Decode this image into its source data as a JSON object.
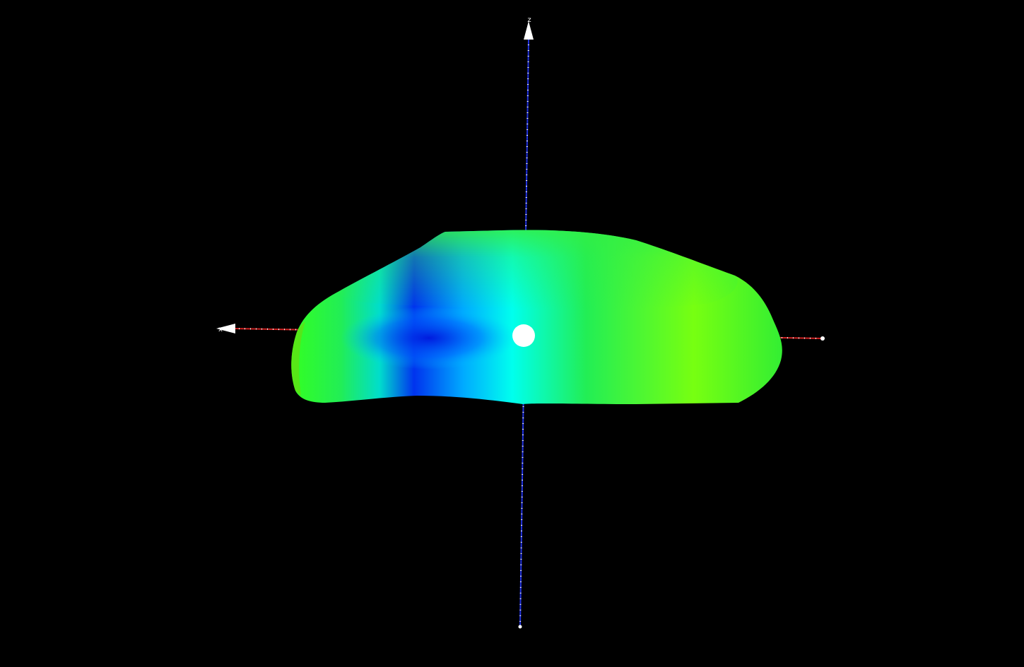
{
  "viewer": {
    "background_color": "#000000",
    "axes": {
      "x": {
        "label": "x",
        "color": "#cc2222",
        "tick_color": "#ffffff"
      },
      "z": {
        "label": "z",
        "color": "#2233dd",
        "tick_color": "#ffffff"
      }
    },
    "model": {
      "colors": {
        "green": "#22ee33",
        "yellow_green": "#77ff00",
        "cyan": "#00ffff",
        "blue": "#0022ee"
      }
    },
    "origin_marker_color": "#ffffff"
  }
}
